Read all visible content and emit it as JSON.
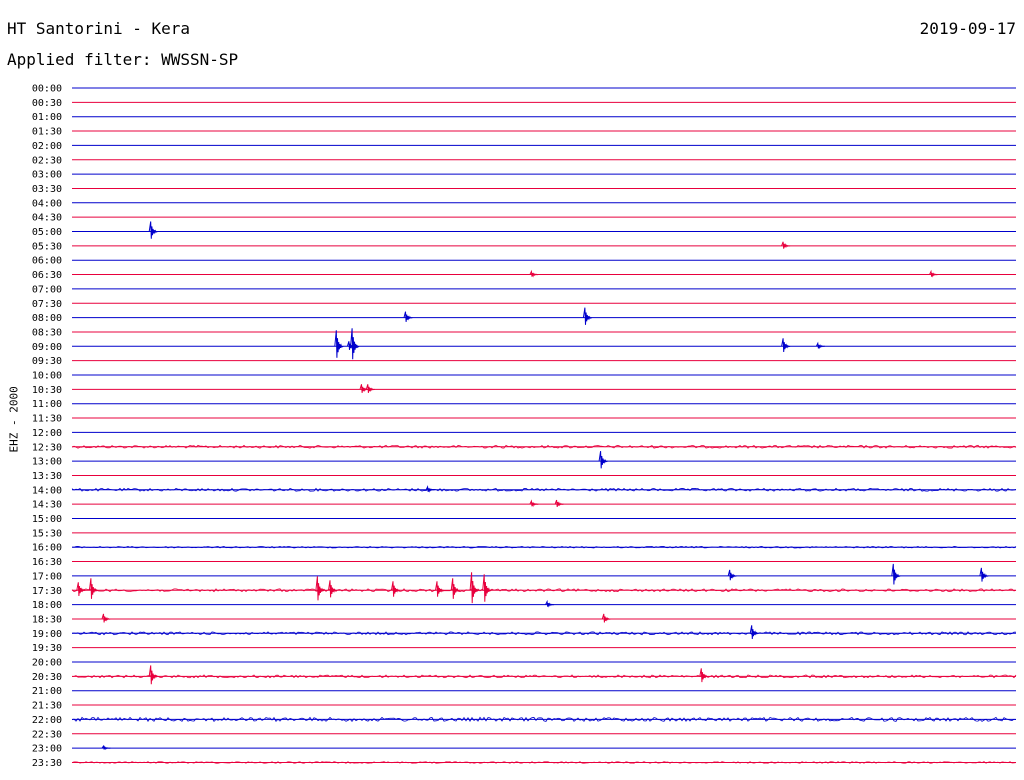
{
  "header": {
    "station": "HT Santorini - Kera",
    "date": "2019-09-17",
    "filter": "Applied filter: WWSSN-SP"
  },
  "channel_label": "EHZ - 2000",
  "colors": {
    "even_trace": "#0000cc",
    "odd_trace": "#e8003d"
  },
  "chart_data": {
    "type": "line",
    "title": "",
    "xlabel": "",
    "ylabel": "EHZ - 2000",
    "rows": [
      "00:00",
      "00:30",
      "01:00",
      "01:30",
      "02:00",
      "02:30",
      "03:00",
      "03:30",
      "04:00",
      "04:30",
      "05:00",
      "05:30",
      "06:00",
      "06:30",
      "07:00",
      "07:30",
      "08:00",
      "08:30",
      "09:00",
      "09:30",
      "10:00",
      "10:30",
      "11:00",
      "11:30",
      "12:00",
      "12:30",
      "13:00",
      "13:30",
      "14:00",
      "14:30",
      "15:00",
      "15:30",
      "16:00",
      "16:30",
      "17:00",
      "17:30",
      "18:00",
      "18:30",
      "19:00",
      "19:30",
      "20:00",
      "20:30",
      "21:00",
      "21:30",
      "22:00",
      "22:30",
      "23:00",
      "23:30"
    ],
    "xlim": [
      0,
      30
    ],
    "noise_rows": [
      {
        "row": "12:30",
        "level": "medium"
      },
      {
        "row": "14:00",
        "level": "medium"
      },
      {
        "row": "16:00",
        "level": "low"
      },
      {
        "row": "17:30",
        "level": "medium"
      },
      {
        "row": "19:00",
        "level": "medium"
      },
      {
        "row": "20:30",
        "level": "medium"
      },
      {
        "row": "22:00",
        "level": "high"
      },
      {
        "row": "23:30",
        "level": "low"
      }
    ],
    "events": [
      {
        "row": "05:00",
        "minute": 2.5,
        "amplitude": 10
      },
      {
        "row": "05:30",
        "minute": 22.6,
        "amplitude": 4
      },
      {
        "row": "06:30",
        "minute": 14.6,
        "amplitude": 3
      },
      {
        "row": "06:30",
        "minute": 27.3,
        "amplitude": 3
      },
      {
        "row": "08:00",
        "minute": 10.6,
        "amplitude": 6
      },
      {
        "row": "08:00",
        "minute": 16.3,
        "amplitude": 10
      },
      {
        "row": "09:00",
        "minute": 8.4,
        "amplitude": 16
      },
      {
        "row": "09:00",
        "minute": 8.8,
        "amplitude": 5
      },
      {
        "row": "09:00",
        "minute": 8.9,
        "amplitude": 18
      },
      {
        "row": "09:00",
        "minute": 22.6,
        "amplitude": 8
      },
      {
        "row": "09:00",
        "minute": 23.7,
        "amplitude": 3
      },
      {
        "row": "10:30",
        "minute": 9.2,
        "amplitude": 5
      },
      {
        "row": "10:30",
        "minute": 9.4,
        "amplitude": 5
      },
      {
        "row": "13:00",
        "minute": 16.8,
        "amplitude": 10
      },
      {
        "row": "14:00",
        "minute": 11.3,
        "amplitude": 3
      },
      {
        "row": "14:30",
        "minute": 14.6,
        "amplitude": 3
      },
      {
        "row": "14:30",
        "minute": 15.4,
        "amplitude": 4
      },
      {
        "row": "17:00",
        "minute": 20.9,
        "amplitude": 6
      },
      {
        "row": "17:00",
        "minute": 26.1,
        "amplitude": 12
      },
      {
        "row": "17:00",
        "minute": 28.9,
        "amplitude": 8
      },
      {
        "row": "17:30",
        "minute": 0.2,
        "amplitude": 8
      },
      {
        "row": "17:30",
        "minute": 0.6,
        "amplitude": 12
      },
      {
        "row": "17:30",
        "minute": 7.8,
        "amplitude": 14
      },
      {
        "row": "17:30",
        "minute": 8.2,
        "amplitude": 10
      },
      {
        "row": "17:30",
        "minute": 10.2,
        "amplitude": 9
      },
      {
        "row": "17:30",
        "minute": 11.6,
        "amplitude": 9
      },
      {
        "row": "17:30",
        "minute": 12.1,
        "amplitude": 12
      },
      {
        "row": "17:30",
        "minute": 12.7,
        "amplitude": 18
      },
      {
        "row": "17:30",
        "minute": 13.1,
        "amplitude": 16
      },
      {
        "row": "18:00",
        "minute": 15.1,
        "amplitude": 3
      },
      {
        "row": "18:30",
        "minute": 1.0,
        "amplitude": 5
      },
      {
        "row": "18:30",
        "minute": 16.9,
        "amplitude": 5
      },
      {
        "row": "19:00",
        "minute": 21.6,
        "amplitude": 8
      },
      {
        "row": "20:30",
        "minute": 2.5,
        "amplitude": 11
      },
      {
        "row": "20:30",
        "minute": 20.0,
        "amplitude": 8
      },
      {
        "row": "23:00",
        "minute": 1.0,
        "amplitude": 2
      }
    ]
  }
}
